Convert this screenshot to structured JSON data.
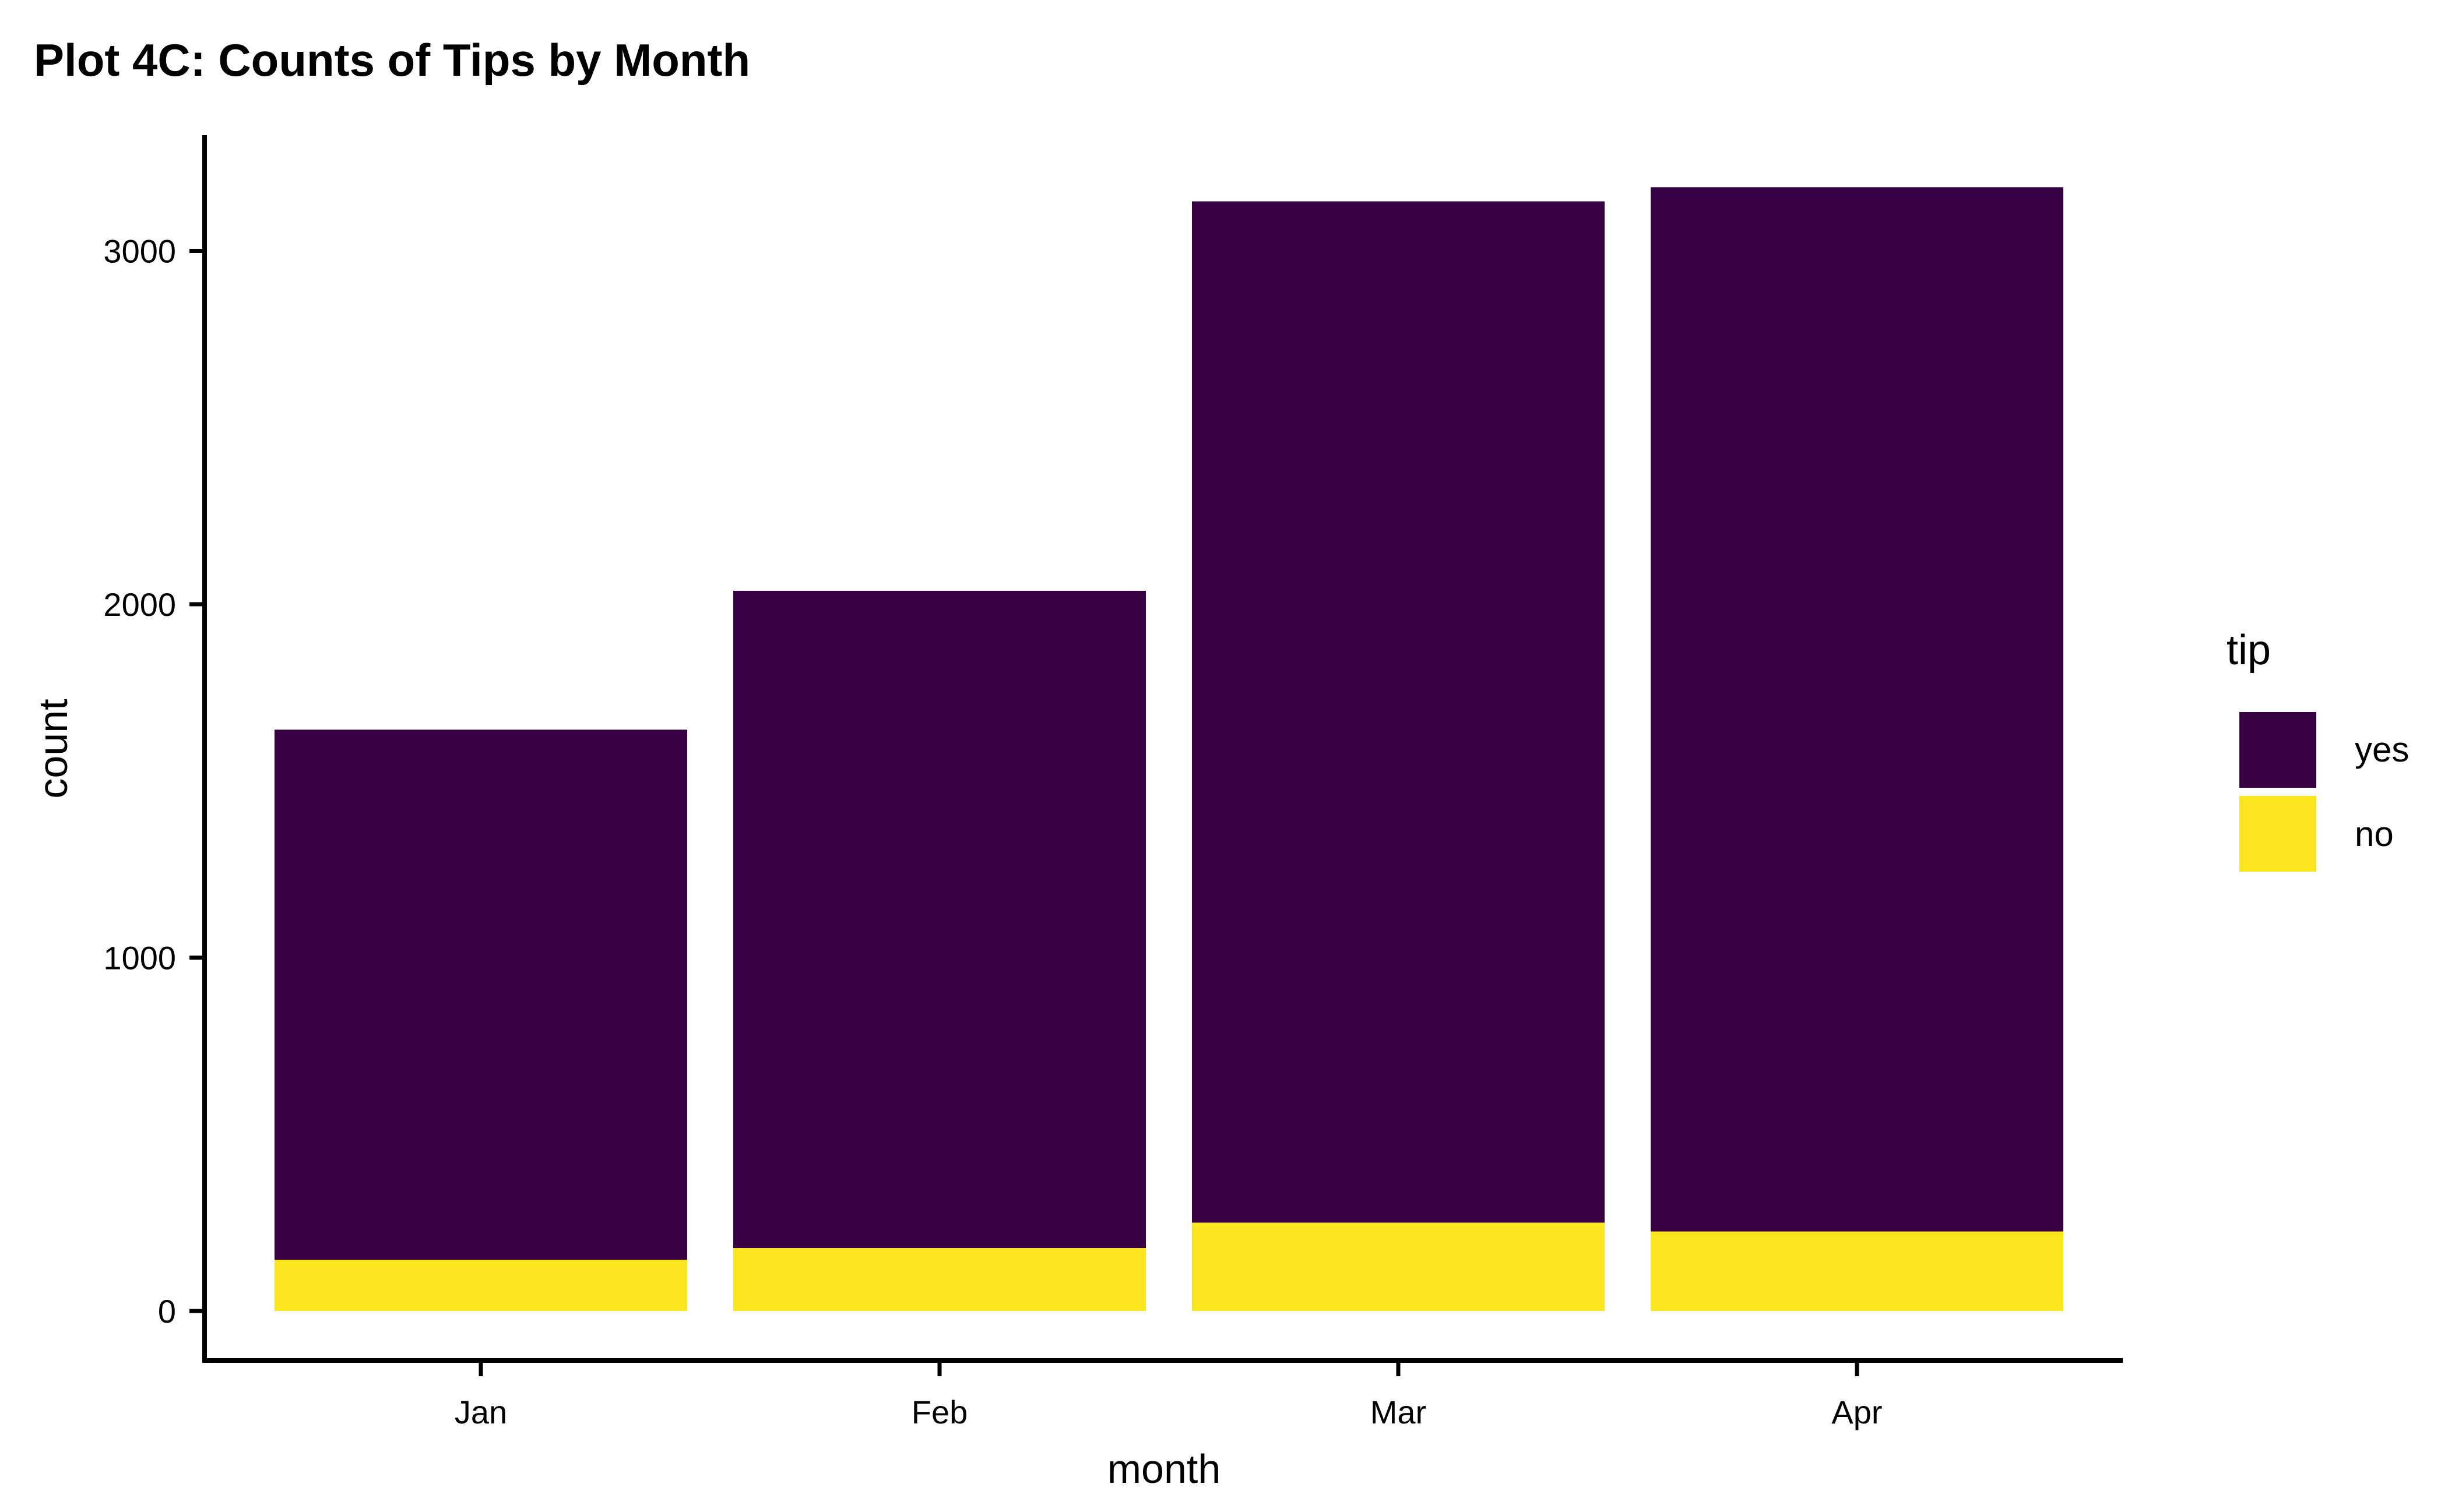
{
  "chart_data": {
    "type": "bar",
    "stacked": true,
    "title": "Plot 4C: Counts of Tips by Month",
    "xlabel": "month",
    "ylabel": "count",
    "categories": [
      "Jan",
      "Feb",
      "Mar",
      "Apr"
    ],
    "series": [
      {
        "name": "yes",
        "color": "#360043",
        "values": [
          1500,
          1860,
          2890,
          2955
        ]
      },
      {
        "name": "no",
        "color": "#fbe51e",
        "values": [
          145,
          178,
          250,
          225
        ]
      }
    ],
    "yticks": [
      "0",
      "1000",
      "2000",
      "3000"
    ],
    "ylim": [
      -150,
      3320
    ],
    "legend": {
      "title": "tip",
      "position": "right"
    },
    "grid": false
  }
}
